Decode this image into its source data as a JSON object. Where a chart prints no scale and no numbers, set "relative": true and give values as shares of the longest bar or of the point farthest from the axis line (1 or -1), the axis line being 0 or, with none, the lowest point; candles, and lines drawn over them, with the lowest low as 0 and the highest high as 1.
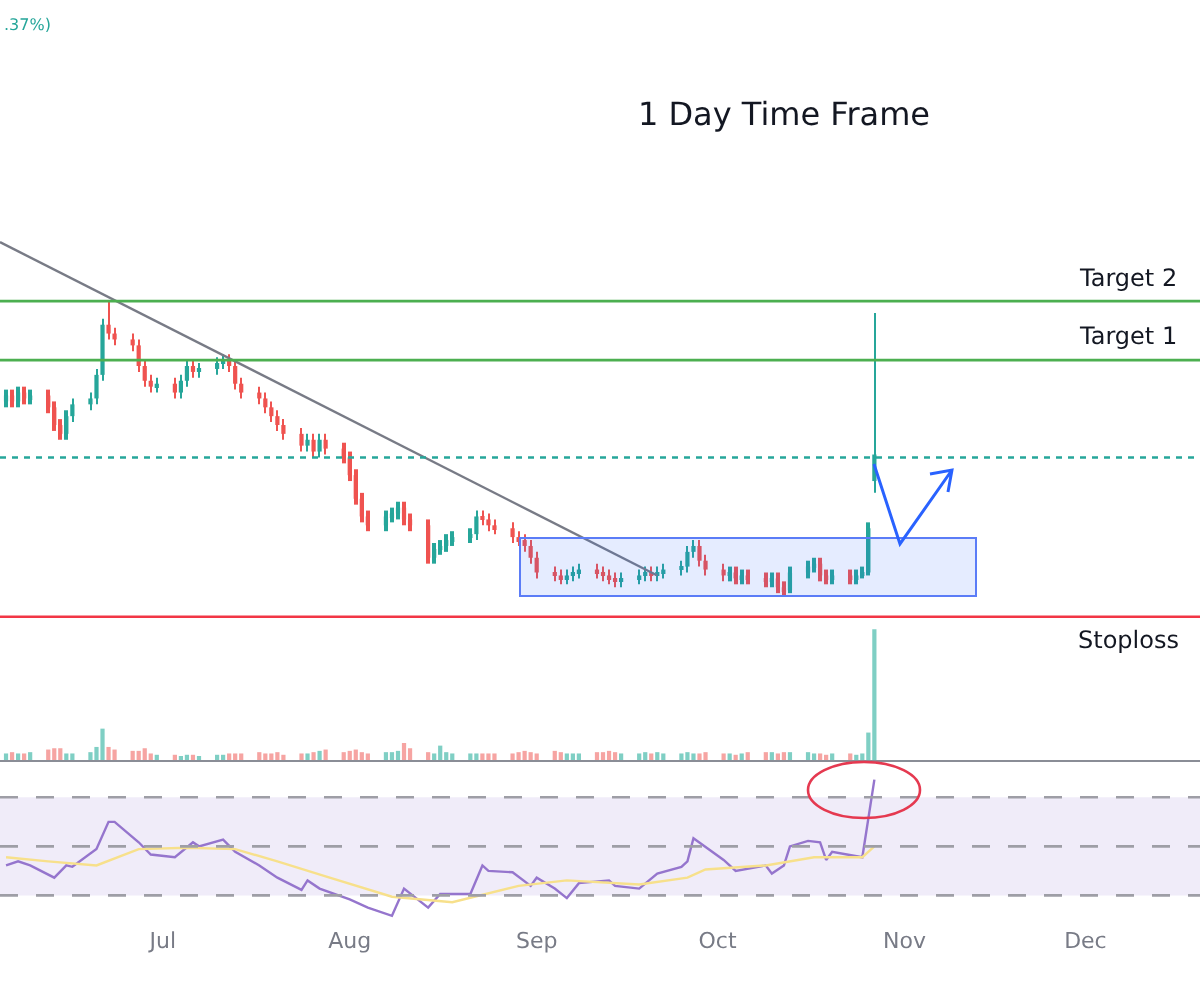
{
  "chart_data": [
    {
      "type": "candlestick",
      "title": "1 Day Time Frame",
      "relative": true,
      "tick_labels": false,
      "annotations": [
        ".37%)"
      ],
      "xlim": [
        "--06-04",
        "--12-20"
      ],
      "xticks": [
        {
          "value": "--07-01",
          "label": "Jul"
        },
        {
          "value": "--08-01",
          "label": "Aug"
        },
        {
          "value": "--09-01",
          "label": "Sep"
        },
        {
          "value": "--10-01",
          "label": "Oct"
        },
        {
          "value": "--11-01",
          "label": "Nov"
        },
        {
          "value": "--12-01",
          "label": "Dec"
        }
      ],
      "x": [
        "--06-05",
        "--06-06",
        "--06-07",
        "--06-08",
        "--06-09",
        "--06-12",
        "--06-13",
        "--06-14",
        "--06-15",
        "--06-16",
        "--06-19",
        "--06-20",
        "--06-21",
        "--06-22",
        "--06-23",
        "--06-26",
        "--06-27",
        "--06-28",
        "--06-29",
        "--06-30",
        "--07-03",
        "--07-04",
        "--07-05",
        "--07-06",
        "--07-07",
        "--07-10",
        "--07-11",
        "--07-12",
        "--07-13",
        "--07-14",
        "--07-17",
        "--07-18",
        "--07-19",
        "--07-20",
        "--07-21",
        "--07-24",
        "--07-25",
        "--07-26",
        "--07-27",
        "--07-28",
        "--07-31",
        "--08-01",
        "--08-02",
        "--08-03",
        "--08-04",
        "--08-07",
        "--08-08",
        "--08-09",
        "--08-10",
        "--08-11",
        "--08-14",
        "--08-15",
        "--08-16",
        "--08-17",
        "--08-18",
        "--08-21",
        "--08-22",
        "--08-23",
        "--08-24",
        "--08-25",
        "--08-28",
        "--08-29",
        "--08-30",
        "--08-31",
        "--09-01",
        "--09-04",
        "--09-05",
        "--09-06",
        "--09-07",
        "--09-08",
        "--09-11",
        "--09-12",
        "--09-13",
        "--09-14",
        "--09-15",
        "--09-18",
        "--09-19",
        "--09-20",
        "--09-21",
        "--09-22",
        "--09-25",
        "--09-26",
        "--09-27",
        "--09-28",
        "--09-29",
        "--10-02",
        "--10-03",
        "--10-04",
        "--10-05",
        "--10-06",
        "--10-09",
        "--10-10",
        "--10-11",
        "--10-12",
        "--10-13",
        "--10-16",
        "--10-17",
        "--10-18",
        "--10-19",
        "--10-20",
        "--10-23",
        "--10-24",
        "--10-25",
        "--10-26",
        "--10-27"
      ],
      "ohlc": [
        [
          0.66,
          0.7,
          0.64,
          0.68
        ],
        [
          0.68,
          0.7,
          0.64,
          0.66
        ],
        [
          0.66,
          0.71,
          0.64,
          0.69
        ],
        [
          0.69,
          0.71,
          0.65,
          0.67
        ],
        [
          0.67,
          0.7,
          0.65,
          0.68
        ],
        [
          0.68,
          0.7,
          0.62,
          0.64
        ],
        [
          0.64,
          0.66,
          0.56,
          0.58
        ],
        [
          0.58,
          0.6,
          0.53,
          0.55
        ],
        [
          0.55,
          0.63,
          0.53,
          0.61
        ],
        [
          0.61,
          0.67,
          0.59,
          0.65
        ],
        [
          0.65,
          0.69,
          0.63,
          0.67
        ],
        [
          0.67,
          0.77,
          0.65,
          0.75
        ],
        [
          0.75,
          0.94,
          0.73,
          0.92
        ],
        [
          0.92,
          1.0,
          0.87,
          0.89
        ],
        [
          0.89,
          0.91,
          0.85,
          0.87
        ],
        [
          0.87,
          0.89,
          0.83,
          0.85
        ],
        [
          0.85,
          0.87,
          0.76,
          0.78
        ],
        [
          0.78,
          0.8,
          0.71,
          0.73
        ],
        [
          0.73,
          0.75,
          0.69,
          0.71
        ],
        [
          0.71,
          0.74,
          0.69,
          0.72
        ],
        [
          0.72,
          0.74,
          0.67,
          0.69
        ],
        [
          0.69,
          0.75,
          0.67,
          0.73
        ],
        [
          0.73,
          0.8,
          0.71,
          0.78
        ],
        [
          0.78,
          0.8,
          0.74,
          0.76
        ],
        [
          0.76,
          0.79,
          0.74,
          0.77
        ],
        [
          0.77,
          0.81,
          0.75,
          0.79
        ],
        [
          0.79,
          0.82,
          0.77,
          0.8
        ],
        [
          0.8,
          0.82,
          0.76,
          0.78
        ],
        [
          0.78,
          0.8,
          0.7,
          0.72
        ],
        [
          0.72,
          0.74,
          0.67,
          0.69
        ],
        [
          0.69,
          0.71,
          0.65,
          0.67
        ],
        [
          0.67,
          0.69,
          0.62,
          0.64
        ],
        [
          0.64,
          0.66,
          0.59,
          0.61
        ],
        [
          0.61,
          0.63,
          0.56,
          0.58
        ],
        [
          0.58,
          0.6,
          0.53,
          0.55
        ],
        [
          0.55,
          0.57,
          0.49,
          0.51
        ],
        [
          0.51,
          0.55,
          0.49,
          0.53
        ],
        [
          0.53,
          0.55,
          0.47,
          0.49
        ],
        [
          0.49,
          0.55,
          0.47,
          0.53
        ],
        [
          0.53,
          0.55,
          0.48,
          0.5
        ],
        [
          0.5,
          0.52,
          0.45,
          0.47
        ],
        [
          0.47,
          0.49,
          0.39,
          0.41
        ],
        [
          0.41,
          0.43,
          0.31,
          0.33
        ],
        [
          0.33,
          0.35,
          0.25,
          0.27
        ],
        [
          0.27,
          0.29,
          0.22,
          0.24
        ],
        [
          0.24,
          0.29,
          0.22,
          0.27
        ],
        [
          0.27,
          0.3,
          0.25,
          0.28
        ],
        [
          0.28,
          0.32,
          0.26,
          0.3
        ],
        [
          0.3,
          0.32,
          0.24,
          0.26
        ],
        [
          0.26,
          0.28,
          0.22,
          0.24
        ],
        [
          0.24,
          0.26,
          0.11,
          0.13
        ],
        [
          0.13,
          0.18,
          0.11,
          0.16
        ],
        [
          0.16,
          0.19,
          0.14,
          0.17
        ],
        [
          0.17,
          0.21,
          0.15,
          0.19
        ],
        [
          0.19,
          0.22,
          0.17,
          0.2
        ],
        [
          0.2,
          0.23,
          0.18,
          0.21
        ],
        [
          0.21,
          0.29,
          0.19,
          0.27
        ],
        [
          0.27,
          0.29,
          0.24,
          0.26
        ],
        [
          0.26,
          0.28,
          0.22,
          0.24
        ],
        [
          0.24,
          0.26,
          0.21,
          0.23
        ],
        [
          0.23,
          0.25,
          0.18,
          0.2
        ],
        [
          0.2,
          0.22,
          0.17,
          0.19
        ],
        [
          0.19,
          0.21,
          0.15,
          0.17
        ],
        [
          0.17,
          0.19,
          0.11,
          0.13
        ],
        [
          0.13,
          0.15,
          0.06,
          0.08
        ],
        [
          0.08,
          0.1,
          0.05,
          0.07
        ],
        [
          0.07,
          0.09,
          0.04,
          0.06
        ],
        [
          0.06,
          0.09,
          0.04,
          0.07
        ],
        [
          0.07,
          0.1,
          0.05,
          0.08
        ],
        [
          0.08,
          0.11,
          0.06,
          0.09
        ],
        [
          0.09,
          0.11,
          0.06,
          0.08
        ],
        [
          0.08,
          0.1,
          0.05,
          0.07
        ],
        [
          0.07,
          0.09,
          0.04,
          0.06
        ],
        [
          0.06,
          0.08,
          0.03,
          0.05
        ],
        [
          0.05,
          0.08,
          0.03,
          0.06
        ],
        [
          0.06,
          0.09,
          0.04,
          0.07
        ],
        [
          0.07,
          0.1,
          0.05,
          0.08
        ],
        [
          0.08,
          0.1,
          0.05,
          0.07
        ],
        [
          0.07,
          0.1,
          0.05,
          0.08
        ],
        [
          0.08,
          0.11,
          0.06,
          0.09
        ],
        [
          0.09,
          0.12,
          0.07,
          0.1
        ],
        [
          0.1,
          0.17,
          0.08,
          0.15
        ],
        [
          0.15,
          0.19,
          0.13,
          0.17
        ],
        [
          0.17,
          0.19,
          0.1,
          0.12
        ],
        [
          0.12,
          0.14,
          0.07,
          0.09
        ],
        [
          0.09,
          0.11,
          0.05,
          0.07
        ],
        [
          0.07,
          0.1,
          0.05,
          0.08
        ],
        [
          0.08,
          0.1,
          0.04,
          0.06
        ],
        [
          0.06,
          0.09,
          0.04,
          0.07
        ],
        [
          0.07,
          0.09,
          0.04,
          0.06
        ],
        [
          0.06,
          0.08,
          0.03,
          0.05
        ],
        [
          0.05,
          0.08,
          0.03,
          0.06
        ],
        [
          0.06,
          0.08,
          0.01,
          0.03
        ],
        [
          0.03,
          0.05,
          0.0,
          0.02
        ],
        [
          0.02,
          0.1,
          0.01,
          0.08
        ],
        [
          0.08,
          0.12,
          0.06,
          0.1
        ],
        [
          0.1,
          0.13,
          0.08,
          0.11
        ],
        [
          0.11,
          0.13,
          0.05,
          0.07
        ],
        [
          0.07,
          0.09,
          0.04,
          0.06
        ],
        [
          0.06,
          0.09,
          0.04,
          0.07
        ],
        [
          0.07,
          0.09,
          0.04,
          0.06
        ],
        [
          0.06,
          0.09,
          0.04,
          0.07
        ],
        [
          0.07,
          0.1,
          0.06,
          0.08
        ],
        [
          0.08,
          0.25,
          0.07,
          0.23
        ],
        [
          0.39,
          0.96,
          0.35,
          0.48
        ]
      ],
      "colors": [
        "#26a69a",
        "#ef5350",
        "#26a69a",
        "#ef5350",
        "#26a69a",
        "#ef5350",
        "#ef5350",
        "#ef5350",
        "#26a69a",
        "#26a69a",
        "#26a69a",
        "#26a69a",
        "#26a69a",
        "#ef5350",
        "#ef5350",
        "#ef5350",
        "#ef5350",
        "#ef5350",
        "#ef5350",
        "#26a69a",
        "#ef5350",
        "#26a69a",
        "#26a69a",
        "#ef5350",
        "#26a69a",
        "#26a69a",
        "#26a69a",
        "#ef5350",
        "#ef5350",
        "#ef5350",
        "#ef5350",
        "#ef5350",
        "#ef5350",
        "#ef5350",
        "#ef5350",
        "#ef5350",
        "#26a69a",
        "#ef5350",
        "#26a69a",
        "#ef5350",
        "#ef5350",
        "#ef5350",
        "#ef5350",
        "#ef5350",
        "#ef5350",
        "#26a69a",
        "#26a69a",
        "#26a69a",
        "#ef5350",
        "#ef5350",
        "#ef5350",
        "#26a69a",
        "#26a69a",
        "#26a69a",
        "#26a69a",
        "#26a69a",
        "#26a69a",
        "#ef5350",
        "#ef5350",
        "#ef5350",
        "#ef5350",
        "#ef5350",
        "#ef5350",
        "#ef5350",
        "#ef5350",
        "#ef5350",
        "#ef5350",
        "#26a69a",
        "#26a69a",
        "#26a69a",
        "#ef5350",
        "#ef5350",
        "#ef5350",
        "#ef5350",
        "#26a69a",
        "#26a69a",
        "#26a69a",
        "#ef5350",
        "#26a69a",
        "#26a69a",
        "#26a69a",
        "#26a69a",
        "#26a69a",
        "#ef5350",
        "#ef5350",
        "#ef5350",
        "#26a69a",
        "#ef5350",
        "#26a69a",
        "#ef5350",
        "#ef5350",
        "#26a69a",
        "#ef5350",
        "#ef5350",
        "#26a69a",
        "#26a69a",
        "#26a69a",
        "#ef5350",
        "#ef5350",
        "#26a69a",
        "#ef5350",
        "#26a69a",
        "#26a69a",
        "#26a69a",
        "#26a69a"
      ],
      "series": [
        {
          "type": "line",
          "x": [
            "--06-04",
            "--09-21"
          ],
          "values": [
            1.2,
            0.07
          ],
          "color": "#787b86"
        }
      ],
      "ref_lines": [
        {
          "axis": "y",
          "value": 1.0,
          "label": "Target 2",
          "color": "#4caf50",
          "line_style": "solid"
        },
        {
          "axis": "y",
          "value": 0.8,
          "label": "Target 1",
          "color": "#4caf50",
          "line_style": "solid"
        },
        {
          "axis": "y",
          "value": -0.07,
          "label": "Stoploss",
          "color": "#f23645",
          "line_style": "solid"
        },
        {
          "axis": "y",
          "value": 0.47,
          "color": "#26a69a",
          "line_style": "dotted"
        }
      ]
    },
    {
      "type": "bar",
      "relative": true,
      "tick_labels": false,
      "xlim": [
        "--06-04",
        "--12-20"
      ],
      "xticks": [
        {
          "value": "--07-01",
          "label": "Jul"
        },
        {
          "value": "--08-01",
          "label": "Aug"
        },
        {
          "value": "--09-01",
          "label": "Sep"
        },
        {
          "value": "--10-01",
          "label": "Oct"
        },
        {
          "value": "--11-01",
          "label": "Nov"
        },
        {
          "value": "--12-01",
          "label": "Dec"
        }
      ],
      "x": [
        "--06-05",
        "--06-06",
        "--06-07",
        "--06-08",
        "--06-09",
        "--06-12",
        "--06-13",
        "--06-14",
        "--06-15",
        "--06-16",
        "--06-19",
        "--06-20",
        "--06-21",
        "--06-22",
        "--06-23",
        "--06-26",
        "--06-27",
        "--06-28",
        "--06-29",
        "--06-30",
        "--07-03",
        "--07-04",
        "--07-05",
        "--07-06",
        "--07-07",
        "--07-10",
        "--07-11",
        "--07-12",
        "--07-13",
        "--07-14",
        "--07-17",
        "--07-18",
        "--07-19",
        "--07-20",
        "--07-21",
        "--07-24",
        "--07-25",
        "--07-26",
        "--07-27",
        "--07-28",
        "--07-31",
        "--08-01",
        "--08-02",
        "--08-03",
        "--08-04",
        "--08-07",
        "--08-08",
        "--08-09",
        "--08-10",
        "--08-11",
        "--08-14",
        "--08-15",
        "--08-16",
        "--08-17",
        "--08-18",
        "--08-21",
        "--08-22",
        "--08-23",
        "--08-24",
        "--08-25",
        "--08-28",
        "--08-29",
        "--08-30",
        "--08-31",
        "--09-01",
        "--09-04",
        "--09-05",
        "--09-06",
        "--09-07",
        "--09-08",
        "--09-11",
        "--09-12",
        "--09-13",
        "--09-14",
        "--09-15",
        "--09-18",
        "--09-19",
        "--09-20",
        "--09-21",
        "--09-22",
        "--09-25",
        "--09-26",
        "--09-27",
        "--09-28",
        "--09-29",
        "--10-02",
        "--10-03",
        "--10-04",
        "--10-05",
        "--10-06",
        "--10-09",
        "--10-10",
        "--10-11",
        "--10-12",
        "--10-13",
        "--10-16",
        "--10-17",
        "--10-18",
        "--10-19",
        "--10-20",
        "--10-23",
        "--10-24",
        "--10-25",
        "--10-26",
        "--10-27"
      ],
      "values": [
        0.05,
        0.06,
        0.05,
        0.05,
        0.06,
        0.08,
        0.09,
        0.09,
        0.05,
        0.05,
        0.06,
        0.1,
        0.24,
        0.1,
        0.08,
        0.07,
        0.07,
        0.09,
        0.05,
        0.04,
        0.04,
        0.03,
        0.04,
        0.04,
        0.03,
        0.04,
        0.04,
        0.05,
        0.05,
        0.05,
        0.06,
        0.05,
        0.05,
        0.06,
        0.04,
        0.05,
        0.05,
        0.06,
        0.07,
        0.08,
        0.06,
        0.07,
        0.08,
        0.06,
        0.05,
        0.06,
        0.06,
        0.07,
        0.13,
        0.09,
        0.06,
        0.05,
        0.11,
        0.06,
        0.05,
        0.05,
        0.05,
        0.05,
        0.05,
        0.05,
        0.05,
        0.06,
        0.07,
        0.06,
        0.05,
        0.07,
        0.06,
        0.05,
        0.05,
        0.05,
        0.06,
        0.06,
        0.07,
        0.06,
        0.05,
        0.05,
        0.06,
        0.05,
        0.06,
        0.05,
        0.05,
        0.06,
        0.05,
        0.05,
        0.06,
        0.05,
        0.05,
        0.04,
        0.05,
        0.06,
        0.06,
        0.06,
        0.05,
        0.06,
        0.06,
        0.06,
        0.05,
        0.05,
        0.04,
        0.05,
        0.05,
        0.04,
        0.05,
        0.21,
        1.0
      ],
      "colors": [
        "#7fcfc4",
        "#f6a4a2",
        "#7fcfc4",
        "#f6a4a2",
        "#7fcfc4",
        "#f6a4a2",
        "#f6a4a2",
        "#f6a4a2",
        "#7fcfc4",
        "#7fcfc4",
        "#7fcfc4",
        "#7fcfc4",
        "#7fcfc4",
        "#f6a4a2",
        "#f6a4a2",
        "#f6a4a2",
        "#f6a4a2",
        "#f6a4a2",
        "#f6a4a2",
        "#7fcfc4",
        "#f6a4a2",
        "#7fcfc4",
        "#7fcfc4",
        "#f6a4a2",
        "#7fcfc4",
        "#7fcfc4",
        "#7fcfc4",
        "#f6a4a2",
        "#f6a4a2",
        "#f6a4a2",
        "#f6a4a2",
        "#f6a4a2",
        "#f6a4a2",
        "#f6a4a2",
        "#f6a4a2",
        "#f6a4a2",
        "#7fcfc4",
        "#f6a4a2",
        "#7fcfc4",
        "#f6a4a2",
        "#f6a4a2",
        "#f6a4a2",
        "#f6a4a2",
        "#f6a4a2",
        "#f6a4a2",
        "#7fcfc4",
        "#7fcfc4",
        "#7fcfc4",
        "#f6a4a2",
        "#f6a4a2",
        "#f6a4a2",
        "#7fcfc4",
        "#7fcfc4",
        "#7fcfc4",
        "#7fcfc4",
        "#7fcfc4",
        "#7fcfc4",
        "#f6a4a2",
        "#f6a4a2",
        "#f6a4a2",
        "#f6a4a2",
        "#f6a4a2",
        "#f6a4a2",
        "#f6a4a2",
        "#f6a4a2",
        "#f6a4a2",
        "#f6a4a2",
        "#7fcfc4",
        "#7fcfc4",
        "#7fcfc4",
        "#f6a4a2",
        "#f6a4a2",
        "#f6a4a2",
        "#f6a4a2",
        "#7fcfc4",
        "#7fcfc4",
        "#7fcfc4",
        "#f6a4a2",
        "#7fcfc4",
        "#7fcfc4",
        "#7fcfc4",
        "#7fcfc4",
        "#7fcfc4",
        "#f6a4a2",
        "#f6a4a2",
        "#f6a4a2",
        "#7fcfc4",
        "#f6a4a2",
        "#7fcfc4",
        "#f6a4a2",
        "#f6a4a2",
        "#7fcfc4",
        "#f6a4a2",
        "#f6a4a2",
        "#7fcfc4",
        "#7fcfc4",
        "#7fcfc4",
        "#f6a4a2",
        "#f6a4a2",
        "#7fcfc4",
        "#f6a4a2",
        "#7fcfc4",
        "#7fcfc4",
        "#7fcfc4",
        "#7fcfc4"
      ]
    },
    {
      "type": "line",
      "relative": true,
      "tick_labels": "x",
      "xlim": [
        "--06-04",
        "--12-20"
      ],
      "xticks": [
        {
          "value": "--07-01",
          "label": "Jul"
        },
        {
          "value": "--08-01",
          "label": "Aug"
        },
        {
          "value": "--09-01",
          "label": "Sep"
        },
        {
          "value": "--10-01",
          "label": "Oct"
        },
        {
          "value": "--11-01",
          "label": "Nov"
        },
        {
          "value": "--12-01",
          "label": "Dec"
        }
      ],
      "x": [
        "--06-05",
        "--06-07",
        "--06-09",
        "--06-13",
        "--06-15",
        "--06-16",
        "--06-20",
        "--06-22",
        "--06-23",
        "--06-27",
        "--06-29",
        "--07-03",
        "--07-06",
        "--07-07",
        "--07-11",
        "--07-13",
        "--07-17",
        "--07-20",
        "--07-24",
        "--07-25",
        "--07-27",
        "--08-01",
        "--08-04",
        "--08-08",
        "--08-10",
        "--08-14",
        "--08-16",
        "--08-21",
        "--08-23",
        "--08-24",
        "--08-28",
        "--08-31",
        "--09-01",
        "--09-04",
        "--09-06",
        "--09-08",
        "--09-13",
        "--09-14",
        "--09-18",
        "--09-21",
        "--09-25",
        "--09-26",
        "--09-27",
        "--10-02",
        "--10-04",
        "--10-09",
        "--10-10",
        "--10-12",
        "--10-13",
        "--10-16",
        "--10-18",
        "--10-19",
        "--10-20",
        "--10-25",
        "--10-27"
      ],
      "series": [
        {
          "color": "#9575cd",
          "values": [
            0.37,
            0.4,
            0.37,
            0.28,
            0.37,
            0.36,
            0.49,
            0.69,
            0.69,
            0.54,
            0.45,
            0.43,
            0.54,
            0.51,
            0.56,
            0.47,
            0.37,
            0.28,
            0.19,
            0.26,
            0.2,
            0.12,
            0.06,
            0.0,
            0.2,
            0.06,
            0.16,
            0.16,
            0.37,
            0.33,
            0.32,
            0.22,
            0.28,
            0.2,
            0.13,
            0.24,
            0.26,
            0.22,
            0.2,
            0.31,
            0.36,
            0.4,
            0.57,
            0.41,
            0.33,
            0.37,
            0.31,
            0.37,
            0.51,
            0.55,
            0.54,
            0.41,
            0.47,
            0.43,
            1.0
          ]
        },
        {
          "color": "#f7e08b",
          "x": [
            "--06-05",
            "--06-12",
            "--06-20",
            "--06-27",
            "--07-05",
            "--07-13",
            "--07-20",
            "--07-28",
            "--08-08",
            "--08-18",
            "--08-29",
            "--09-06",
            "--09-18",
            "--09-26",
            "--09-29",
            "--10-09",
            "--10-17",
            "--10-25",
            "--10-27"
          ],
          "values": [
            0.43,
            0.4,
            0.37,
            0.49,
            0.5,
            0.49,
            0.4,
            0.29,
            0.14,
            0.1,
            0.22,
            0.26,
            0.23,
            0.28,
            0.34,
            0.37,
            0.43,
            0.43,
            0.51
          ]
        }
      ],
      "bands": [
        {
          "axis": "y",
          "from": 0.15,
          "to": 0.87,
          "color": "#f0ecf9"
        }
      ],
      "ref_lines": [
        {
          "axis": "y",
          "value": 0.87,
          "color": "#9e9ea6",
          "line_style": "dashed"
        },
        {
          "axis": "y",
          "value": 0.51,
          "color": "#9e9ea6",
          "line_style": "dashed"
        },
        {
          "axis": "y",
          "value": 0.15,
          "color": "#9e9ea6",
          "line_style": "dashed"
        }
      ]
    }
  ]
}
